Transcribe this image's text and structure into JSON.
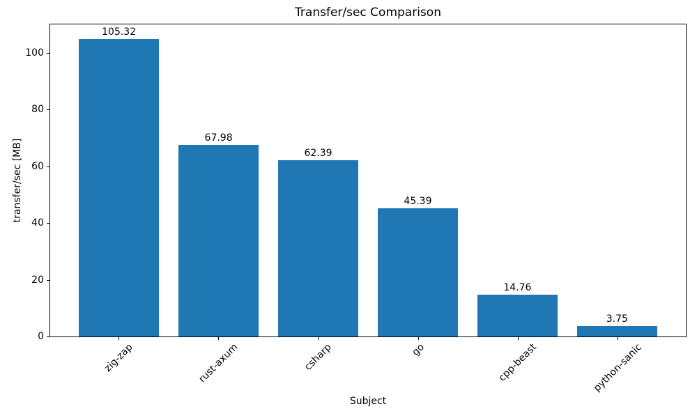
{
  "chart_data": {
    "type": "bar",
    "title": "Transfer/sec Comparison",
    "xlabel": "Subject",
    "ylabel": "transfer/sec [MB]",
    "categories": [
      "zig-zap",
      "rust-axum",
      "csharp",
      "go",
      "cpp-beast",
      "python-sanic"
    ],
    "values": [
      105.32,
      67.98,
      62.39,
      45.39,
      14.76,
      3.75
    ],
    "value_labels": [
      "105.32",
      "67.98",
      "62.39",
      "45.39",
      "14.76",
      "3.75"
    ],
    "yticks": [
      0,
      20,
      40,
      60,
      80,
      100
    ],
    "ytick_labels": [
      "0",
      "20",
      "40",
      "60",
      "80",
      "100"
    ],
    "ylim": [
      0,
      110.59
    ],
    "xlim": [
      -0.69,
      5.69
    ],
    "bar_width": 0.8,
    "bar_color": "#1f77b4",
    "background_color": "#ffffff",
    "text_color": "#000000",
    "spine_color": "#000000",
    "grid": false,
    "legend_position": "none",
    "xtick_label_rotation_deg": 45
  }
}
